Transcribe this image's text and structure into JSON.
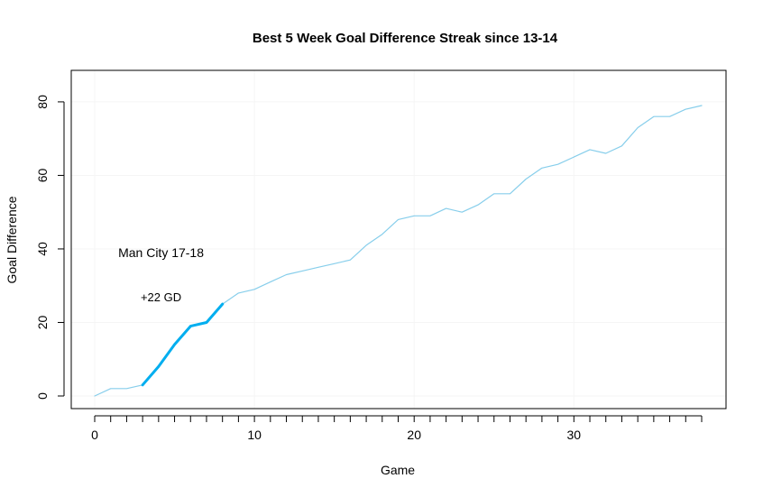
{
  "chart_data": {
    "type": "line",
    "title": "Best 5 Week Goal Difference Streak since 13-14",
    "xlabel": "Game",
    "ylabel": "Goal Difference",
    "xlim": [
      0,
      38
    ],
    "ylim": [
      0,
      79
    ],
    "x_ticks": [
      0,
      10,
      20,
      30
    ],
    "y_ticks": [
      0,
      20,
      40,
      60,
      80
    ],
    "x_minor_ticks": [
      0,
      1,
      2,
      3,
      4,
      5,
      6,
      7,
      8,
      9,
      10,
      11,
      12,
      13,
      14,
      15,
      16,
      17,
      18,
      19,
      20,
      21,
      22,
      23,
      24,
      25,
      26,
      27,
      28,
      29,
      30,
      31,
      32,
      33,
      34,
      35,
      36,
      37,
      38
    ],
    "grid": true,
    "series": [
      {
        "role": "full-season",
        "color": "#87CEEB",
        "x": [
          0,
          1,
          2,
          3,
          4,
          5,
          6,
          7,
          8,
          9,
          10,
          11,
          12,
          13,
          14,
          15,
          16,
          17,
          18,
          19,
          20,
          21,
          22,
          23,
          24,
          25,
          26,
          27,
          28,
          29,
          30,
          31,
          32,
          33,
          34,
          35,
          36,
          37,
          38
        ],
        "y": [
          0,
          2,
          2,
          3,
          8,
          14,
          19,
          20,
          25,
          28,
          29,
          31,
          33,
          34,
          35,
          36,
          37,
          41,
          44,
          48,
          49,
          49,
          51,
          50,
          52,
          55,
          55,
          59,
          62,
          63,
          65,
          67,
          66,
          68,
          73,
          76,
          76,
          78,
          79
        ]
      },
      {
        "role": "streak",
        "color": "#00AEEF",
        "x": [
          3,
          4,
          5,
          6,
          7,
          8
        ],
        "y": [
          3,
          8,
          14,
          19,
          20,
          25
        ]
      }
    ],
    "annotations": [
      {
        "text": "Man City 17-18",
        "x": 5,
        "y": 39,
        "style": "main"
      },
      {
        "text": "+22 GD",
        "x": 5,
        "y": 27,
        "style": "sub"
      }
    ]
  }
}
